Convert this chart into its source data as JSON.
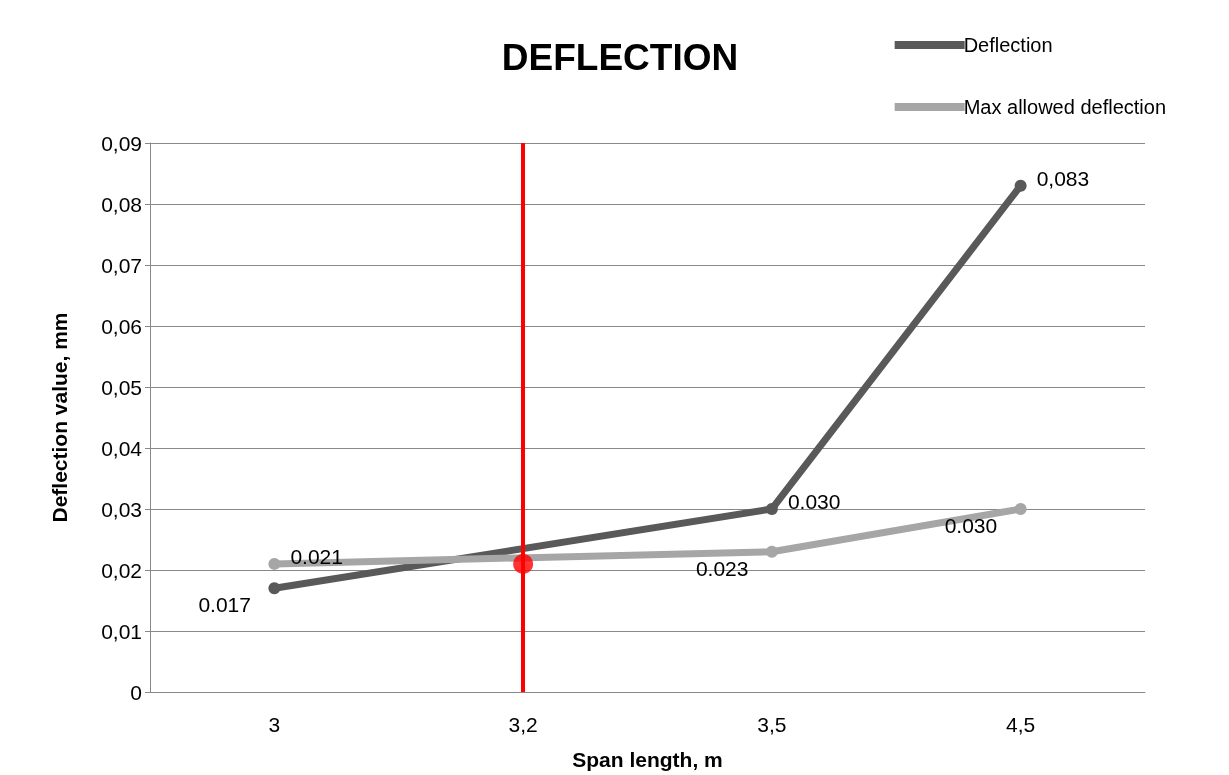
{
  "chart_data": {
    "type": "line",
    "title": "DEFLECTION",
    "xlabel": "Span length, m",
    "ylabel": "Deflection value, mm",
    "categories": [
      "3",
      "3,2",
      "3,5",
      "4,5"
    ],
    "series": [
      {
        "name": "Deflection",
        "color": "#595959",
        "values": [
          0.017,
          null,
          0.03,
          0.083
        ],
        "value_labels": [
          "0.017",
          null,
          "0.030",
          "0,083"
        ]
      },
      {
        "name": "Max allowed deflection",
        "color": "#a6a6a6",
        "values": [
          0.021,
          null,
          0.023,
          0.03
        ],
        "value_labels": [
          "0.021",
          null,
          "0.023",
          "0.030"
        ]
      },
      {
        "type": "scatter",
        "color": "#ff0000",
        "x": [
          "3,2"
        ],
        "values": [
          0.021
        ]
      }
    ],
    "ylim": [
      0,
      0.09
    ],
    "yticks": [
      0,
      {
        "value": 0.01,
        "label": "0,01"
      },
      {
        "value": 0.02,
        "label": "0,02"
      },
      {
        "value": 0.03,
        "label": "0,03"
      },
      {
        "value": 0.04,
        "label": "0,04"
      },
      {
        "value": 0.05,
        "label": "0,05"
      },
      {
        "value": 0.06,
        "label": "0,06"
      },
      {
        "value": 0.07,
        "label": "0,07"
      },
      {
        "value": 0.08,
        "label": "0,08"
      },
      {
        "value": 0.09,
        "label": "0,09"
      }
    ],
    "ref_lines": [
      {
        "axis": "x",
        "value": "3,2",
        "color": "#ff0000"
      }
    ],
    "grid": "y",
    "legend": "top right",
    "marker": "circle",
    "line_style": "solid"
  }
}
